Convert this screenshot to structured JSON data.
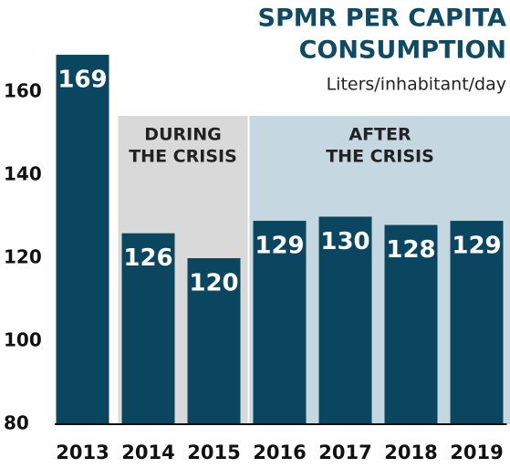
{
  "chart_data": {
    "type": "bar",
    "title": [
      "SPMR PER CAPITA",
      "CONSUMPTION"
    ],
    "subtitle": "Liters/inhabitant/day",
    "categories": [
      "2013",
      "2014",
      "2015",
      "2016",
      "2017",
      "2018",
      "2019"
    ],
    "values": [
      169,
      126,
      120,
      129,
      130,
      128,
      129
    ],
    "color": "#0b4660",
    "ylim": [
      80,
      180
    ],
    "yticks": [
      80,
      100,
      120,
      140,
      160
    ],
    "periods": [
      {
        "label": [
          "DURING",
          "THE CRISIS"
        ],
        "from": "2014",
        "to": "2015",
        "color": "#d9d9d9"
      },
      {
        "label": [
          "AFTER",
          "THE CRISIS"
        ],
        "from": "2016",
        "to": "2019",
        "color": "#c5d7e0"
      }
    ]
  }
}
